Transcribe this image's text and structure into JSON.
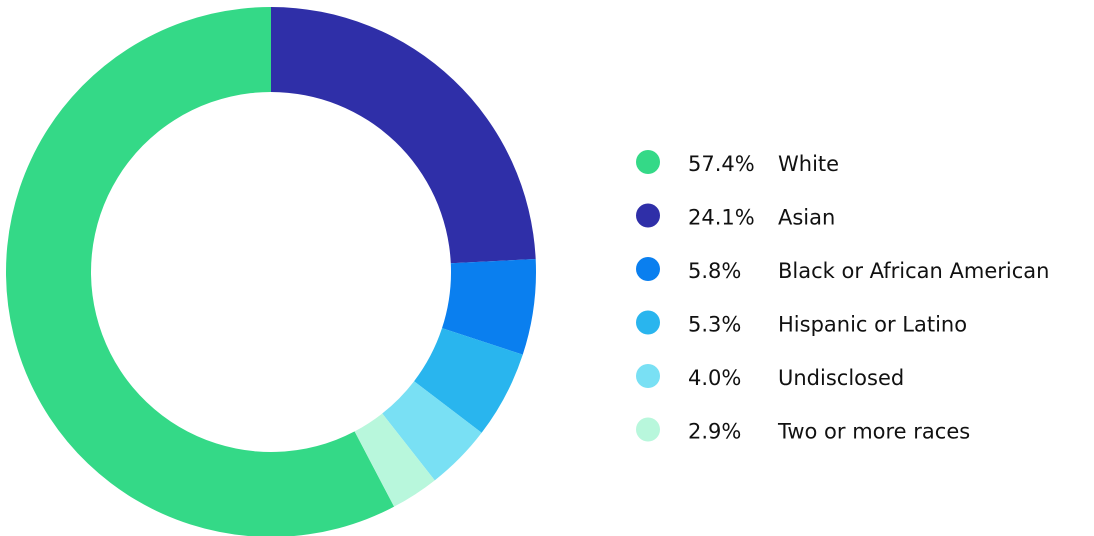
{
  "chart_data": {
    "type": "pie",
    "categories": [
      "White",
      "Asian",
      "Black or African American",
      "Hispanic or Latino",
      "Undisclosed",
      "Two or more races"
    ],
    "values": [
      57.4,
      24.1,
      5.8,
      5.3,
      4.0,
      2.9
    ],
    "value_labels": [
      "57.4%",
      "24.1%",
      "5.8%",
      "5.3%",
      "4.0%",
      "2.9%"
    ],
    "colors": [
      "#34d987",
      "#2f2fa8",
      "#0a7fef",
      "#29b5ee",
      "#79e0f4",
      "#b8f7dc"
    ],
    "legend": "right"
  }
}
